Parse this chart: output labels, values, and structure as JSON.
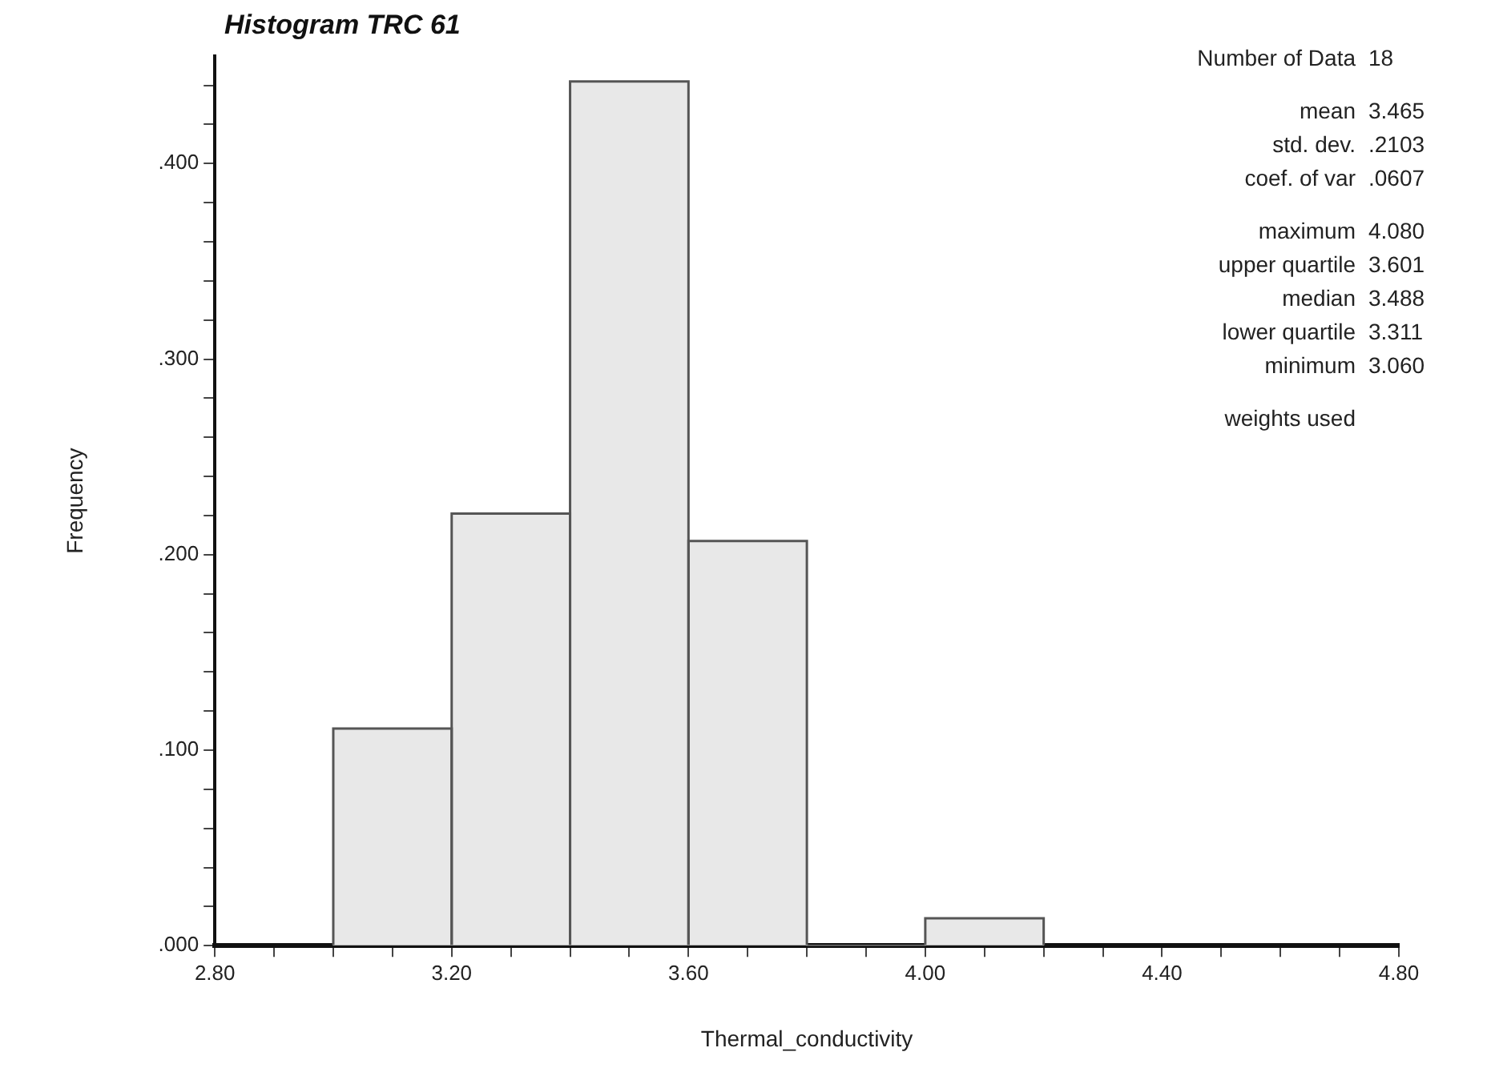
{
  "chart_data": {
    "type": "histogram",
    "title": "Histogram TRC 61",
    "xlabel": "Thermal_conductivity",
    "ylabel": "Frequency",
    "bins": [
      3.0,
      3.2,
      3.4,
      3.6,
      3.8,
      4.0,
      4.2
    ],
    "values": [
      0.111,
      0.221,
      0.442,
      0.207,
      0,
      0.014
    ],
    "color": "#e8e8e8",
    "xlim": [
      2.8,
      4.8
    ],
    "xticks": [
      {
        "value": 2.8,
        "label": "2.80"
      },
      {
        "value": 2.9,
        "label": null
      },
      {
        "value": 3.0,
        "label": null
      },
      {
        "value": 3.1,
        "label": null
      },
      {
        "value": 3.2,
        "label": "3.20"
      },
      {
        "value": 3.3,
        "label": null
      },
      {
        "value": 3.4,
        "label": null
      },
      {
        "value": 3.5,
        "label": null
      },
      {
        "value": 3.6,
        "label": "3.60"
      },
      {
        "value": 3.7,
        "label": null
      },
      {
        "value": 3.8,
        "label": null
      },
      {
        "value": 3.9,
        "label": null
      },
      {
        "value": 4.0,
        "label": "4.00"
      },
      {
        "value": 4.1,
        "label": null
      },
      {
        "value": 4.2,
        "label": null
      },
      {
        "value": 4.3,
        "label": null
      },
      {
        "value": 4.4,
        "label": "4.40"
      },
      {
        "value": 4.5,
        "label": null
      },
      {
        "value": 4.6,
        "label": null
      },
      {
        "value": 4.7,
        "label": null
      },
      {
        "value": 4.8,
        "label": "4.80"
      }
    ],
    "ylim": [
      0,
      0.455
    ],
    "yticks": [
      {
        "value": 0,
        "label": ".000"
      },
      {
        "value": 0.02,
        "label": null
      },
      {
        "value": 0.04,
        "label": null
      },
      {
        "value": 0.06,
        "label": null
      },
      {
        "value": 0.08,
        "label": null
      },
      {
        "value": 0.1,
        "label": ".100"
      },
      {
        "value": 0.12,
        "label": null
      },
      {
        "value": 0.14,
        "label": null
      },
      {
        "value": 0.16,
        "label": null
      },
      {
        "value": 0.18,
        "label": null
      },
      {
        "value": 0.2,
        "label": ".200"
      },
      {
        "value": 0.22,
        "label": null
      },
      {
        "value": 0.24,
        "label": null
      },
      {
        "value": 0.26,
        "label": null
      },
      {
        "value": 0.28,
        "label": null
      },
      {
        "value": 0.3,
        "label": ".300"
      },
      {
        "value": 0.32,
        "label": null
      },
      {
        "value": 0.34,
        "label": null
      },
      {
        "value": 0.36,
        "label": null
      },
      {
        "value": 0.38,
        "label": null
      },
      {
        "value": 0.4,
        "label": ".400"
      },
      {
        "value": 0.42,
        "label": null
      },
      {
        "value": 0.44,
        "label": null
      }
    ],
    "grid": false,
    "legend": false,
    "annotations": [
      "Number of Data",
      "18",
      "mean",
      "3.465",
      "std. dev.",
      ".2103",
      "coef. of var",
      ".0607",
      "maximum",
      "4.080",
      "upper quartile",
      "3.601",
      "median",
      "3.488",
      "lower quartile",
      "3.311",
      "minimum",
      "3.060",
      "weights used"
    ]
  }
}
